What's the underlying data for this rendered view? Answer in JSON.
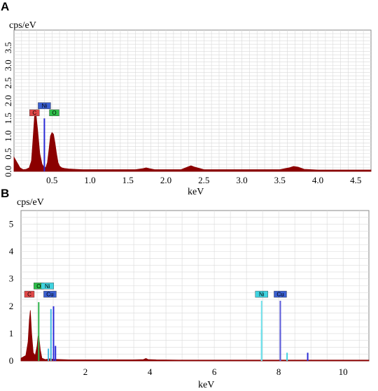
{
  "chart_data": [
    {
      "panel": "A",
      "type": "area",
      "ylabel": "cps/eV",
      "xlabel": "keV",
      "xlim": [
        0,
        4.7
      ],
      "ylim": [
        0,
        4.0
      ],
      "xticks": [
        0.5,
        1.0,
        1.5,
        2.0,
        2.5,
        3.0,
        3.5,
        4.0,
        4.5
      ],
      "xtick_labels": [
        "0.5",
        "1.0",
        "1.5",
        "2.0",
        "2.5",
        "3.0",
        "3.5",
        "4.0",
        "4.5"
      ],
      "yticks": [
        0.0,
        0.5,
        1.0,
        1.5,
        2.0,
        2.5,
        3.0,
        3.5
      ],
      "ytick_labels": [
        "0.0",
        "0.5",
        "1.0",
        "1.5",
        "2.0",
        "2.5",
        "3.0",
        "3.5"
      ],
      "grid": true,
      "fill_color": "#8b0000",
      "spectrum": {
        "x": [
          0.0,
          0.04,
          0.08,
          0.12,
          0.16,
          0.2,
          0.23,
          0.25,
          0.27,
          0.29,
          0.31,
          0.34,
          0.37,
          0.4,
          0.42,
          0.44,
          0.46,
          0.48,
          0.5,
          0.52,
          0.54,
          0.56,
          0.58,
          0.6,
          0.63,
          0.67,
          0.72,
          0.8,
          0.9,
          1.0,
          1.2,
          1.4,
          1.6,
          1.7,
          1.74,
          1.78,
          1.85,
          2.0,
          2.2,
          2.28,
          2.33,
          2.38,
          2.5,
          2.8,
          3.2,
          3.5,
          3.62,
          3.68,
          3.74,
          3.82,
          4.0,
          4.3,
          4.6,
          4.7
        ],
        "y": [
          0.4,
          0.25,
          0.1,
          0.05,
          0.06,
          0.1,
          0.3,
          0.9,
          1.55,
          1.6,
          1.2,
          0.5,
          0.2,
          0.1,
          0.12,
          0.25,
          0.6,
          1.0,
          1.1,
          1.05,
          0.8,
          0.5,
          0.25,
          0.15,
          0.1,
          0.08,
          0.07,
          0.06,
          0.05,
          0.05,
          0.05,
          0.05,
          0.05,
          0.08,
          0.1,
          0.08,
          0.05,
          0.05,
          0.05,
          0.12,
          0.16,
          0.12,
          0.05,
          0.05,
          0.05,
          0.05,
          0.1,
          0.14,
          0.12,
          0.06,
          0.04,
          0.04,
          0.04,
          0.04
        ]
      },
      "lines": [
        {
          "x": 0.4,
          "height": 1.5,
          "color": "#2a2ad6"
        }
      ],
      "peak_labels": [
        {
          "text": "C",
          "x": 0.27,
          "y": 1.55,
          "color": "#e04848"
        },
        {
          "text": "Ni",
          "x": 0.4,
          "y": 1.75,
          "color": "#3a5fd0"
        },
        {
          "text": "O",
          "x": 0.53,
          "y": 1.55,
          "color": "#2ec04a"
        }
      ]
    },
    {
      "panel": "B",
      "type": "area",
      "ylabel": "cps/eV",
      "xlabel": "keV",
      "xlim": [
        0,
        10.8
      ],
      "ylim": [
        0,
        5.5
      ],
      "xticks": [
        2,
        4,
        6,
        8,
        10
      ],
      "xtick_labels": [
        "2",
        "4",
        "6",
        "8",
        "10"
      ],
      "yticks": [
        0,
        1,
        2,
        3,
        4,
        5
      ],
      "ytick_labels": [
        "0",
        "1",
        "2",
        "3",
        "4",
        "5"
      ],
      "grid": true,
      "fill_color": "#8b0000",
      "spectrum": {
        "x": [
          0.0,
          0.15,
          0.22,
          0.26,
          0.29,
          0.33,
          0.38,
          0.44,
          0.5,
          0.53,
          0.56,
          0.6,
          0.65,
          0.75,
          0.9,
          1.0,
          1.5,
          2.0,
          2.5,
          3.0,
          3.5,
          3.8,
          3.88,
          3.95,
          4.2,
          5.0,
          6.0,
          7.0,
          8.0,
          9.0,
          10.0,
          10.8
        ],
        "y": [
          0.1,
          0.2,
          0.7,
          1.5,
          1.85,
          1.0,
          0.3,
          0.2,
          0.55,
          0.9,
          0.85,
          0.4,
          0.1,
          0.05,
          0.08,
          0.06,
          0.04,
          0.04,
          0.04,
          0.04,
          0.04,
          0.05,
          0.09,
          0.05,
          0.04,
          0.03,
          0.03,
          0.03,
          0.03,
          0.03,
          0.03,
          0.03
        ]
      },
      "lines": [
        {
          "x": 0.55,
          "height": 2.15,
          "color": "#2db34a"
        },
        {
          "x": 0.85,
          "height": 0.45,
          "color": "#3fb8e0"
        },
        {
          "x": 0.93,
          "height": 1.9,
          "color": "#3fb8e0"
        },
        {
          "x": 1.01,
          "height": 2.0,
          "color": "#2a2ad6"
        },
        {
          "x": 1.07,
          "height": 0.55,
          "color": "#2a2ad6"
        },
        {
          "x": 7.47,
          "height": 1.15,
          "color": "#3fd3e0"
        },
        {
          "x": 7.47,
          "height": 2.2,
          "color": "#6ee0ea"
        },
        {
          "x": 8.05,
          "height": 1.15,
          "color": "#2a2ad6"
        },
        {
          "x": 8.05,
          "height": 2.2,
          "color": "#5a5ad8"
        },
        {
          "x": 8.26,
          "height": 0.3,
          "color": "#3fd3e0"
        },
        {
          "x": 8.9,
          "height": 0.3,
          "color": "#2a2ad6"
        }
      ],
      "peak_labels": [
        {
          "text": "C",
          "x": 0.26,
          "y": 2.3,
          "color": "#e04848"
        },
        {
          "text": "O",
          "x": 0.55,
          "y": 2.6,
          "color": "#2ec04a"
        },
        {
          "text": "Ni",
          "x": 0.82,
          "y": 2.6,
          "color": "#3fd3e0"
        },
        {
          "text": "Cu",
          "x": 0.9,
          "y": 2.3,
          "color": "#3a5fd0"
        },
        {
          "text": "Ni",
          "x": 7.47,
          "y": 2.3,
          "color": "#3fd3e0"
        },
        {
          "text": "Cu",
          "x": 8.05,
          "y": 2.3,
          "color": "#3a5fd0"
        }
      ]
    }
  ]
}
